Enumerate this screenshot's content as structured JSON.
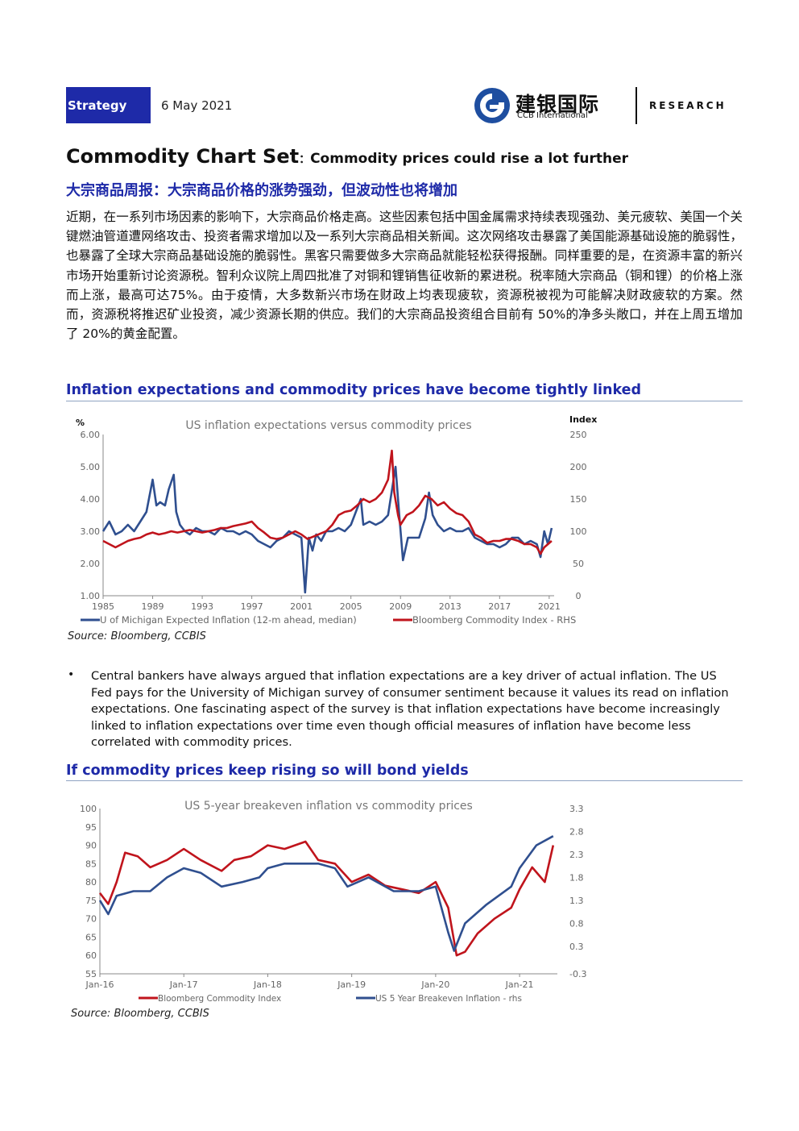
{
  "header": {
    "strategy_label": "Strategy",
    "date": "6 May 2021",
    "logo_cn": "建银国际",
    "logo_en": "CCB International",
    "research_label": "RESEARCH",
    "logo_color": "#1e4ea0"
  },
  "title": {
    "main": "Commodity Chart Set",
    "colon": "：",
    "sub": "Commodity prices could rise a lot further",
    "cn": "大宗商品周报：大宗商品价格的涨势强劲，但波动性也将增加"
  },
  "body_cn": "近期，在一系列市场因素的影响下，大宗商品价格走高。这些因素包括中国金属需求持续表现强劲、美元疲软、美国一个关键燃油管道遭网络攻击、投资者需求增加以及一系列大宗商品相关新闻。这次网络攻击暴露了美国能源基础设施的脆弱性，也暴露了全球大宗商品基础设施的脆弱性。黑客只需要做多大宗商品就能轻松获得报酬。同样重要的是，在资源丰富的新兴市场开始重新讨论资源税。智利众议院上周四批准了对铜和锂销售征收新的累进税。税率随大宗商品（铜和锂）的价格上涨而上涨，最高可达75%。由于疫情，大多数新兴市场在财政上均表现疲软，资源税被视为可能解决财政疲软的方案。然而，资源税将推迟矿业投资，减少资源长期的供应。我们的大宗商品投资组合目前有 50%的净多头敞口，并在上周五增加了 20%的黄金配置。",
  "section1": {
    "title": "Inflation expectations and commodity prices have become tightly linked"
  },
  "section2": {
    "title": "If commodity prices keep rising so will bond yields"
  },
  "source1": "Source: Bloomberg, CCBIS",
  "source2": "Source: Bloomberg, CCBIS",
  "bullet": {
    "symbol": "•",
    "text": "Central bankers have always argued that inflation expectations are a key driver of actual inflation. The US Fed pays for the University of Michigan survey of consumer sentiment because it values its read on inflation expectations. One fascinating aspect of the survey is that inflation expectations have become increasingly linked to inflation expectations over time even though official measures of inflation have become less correlated with commodity prices."
  },
  "chart_data": [
    {
      "type": "line",
      "title": "US inflation expectations versus commodity prices",
      "ylabel": "%",
      "y2label": "Index",
      "ylim": [
        1,
        6
      ],
      "y2lim": [
        0,
        250
      ],
      "yticks": [
        "6.00",
        "5.00",
        "4.00",
        "3.00",
        "2.00",
        "1.00"
      ],
      "y2ticks": [
        "250",
        "200",
        "150",
        "100",
        "50",
        "0"
      ],
      "xlim": [
        1985,
        2021.4
      ],
      "xticks": [
        "1985",
        "1989",
        "1993",
        "1997",
        "2001",
        "2005",
        "2009",
        "2013",
        "2017",
        "2021"
      ],
      "legend_position": "bottom",
      "series": [
        {
          "name": "U of Michigan Expected Inflation (12-m ahead, median)",
          "axis": "left",
          "color": "#2f4f8f",
          "x": [
            1985,
            1985.5,
            1986,
            1986.5,
            1987,
            1987.5,
            1988,
            1988.5,
            1989,
            1989.3,
            1989.6,
            1990,
            1990.3,
            1990.7,
            1990.9,
            1991.2,
            1991.6,
            1992,
            1992.5,
            1993,
            1993.5,
            1994,
            1994.5,
            1995,
            1995.5,
            1996,
            1996.5,
            1997,
            1997.5,
            1998,
            1998.5,
            1999,
            1999.5,
            2000,
            2000.5,
            2001,
            2001.3,
            2001.6,
            2001.9,
            2002.2,
            2002.6,
            2003,
            2003.5,
            2004,
            2004.5,
            2005,
            2005.4,
            2005.8,
            2006,
            2006.5,
            2007,
            2007.5,
            2008,
            2008.4,
            2008.6,
            2008.9,
            2009.2,
            2009.6,
            2010,
            2010.5,
            2011,
            2011.3,
            2011.6,
            2012,
            2012.5,
            2013,
            2013.5,
            2014,
            2014.5,
            2015,
            2015.5,
            2016,
            2016.5,
            2017,
            2017.5,
            2018,
            2018.5,
            2019,
            2019.5,
            2020,
            2020.3,
            2020.6,
            2020.9,
            2021.2
          ],
          "y": [
            3.0,
            3.3,
            2.9,
            3.0,
            3.2,
            3.0,
            3.3,
            3.6,
            4.6,
            3.8,
            3.9,
            3.8,
            4.3,
            4.75,
            3.6,
            3.2,
            3.0,
            2.9,
            3.1,
            3.0,
            3.0,
            2.9,
            3.1,
            3.0,
            3.0,
            2.9,
            3.0,
            2.9,
            2.7,
            2.6,
            2.5,
            2.7,
            2.8,
            3.0,
            2.9,
            2.8,
            1.1,
            2.8,
            2.4,
            2.9,
            2.7,
            3.0,
            3.0,
            3.1,
            3.0,
            3.2,
            3.6,
            4.0,
            3.2,
            3.3,
            3.2,
            3.3,
            3.5,
            4.5,
            5.0,
            3.5,
            2.1,
            2.8,
            2.8,
            2.8,
            3.4,
            4.2,
            3.5,
            3.2,
            3.0,
            3.1,
            3.0,
            3.0,
            3.1,
            2.8,
            2.7,
            2.6,
            2.6,
            2.5,
            2.6,
            2.8,
            2.8,
            2.6,
            2.7,
            2.6,
            2.2,
            3.0,
            2.6,
            3.1
          ]
        },
        {
          "name": "Bloomberg Commodity Index - RHS",
          "axis": "right",
          "color": "#c0141c",
          "x": [
            1985,
            1985.5,
            1986,
            1986.5,
            1987,
            1987.5,
            1988,
            1988.5,
            1989,
            1989.5,
            1990,
            1990.5,
            1991,
            1991.5,
            1992,
            1992.5,
            1993,
            1993.5,
            1994,
            1994.5,
            1995,
            1995.5,
            1996,
            1996.5,
            1997,
            1997.5,
            1998,
            1998.5,
            1999,
            1999.5,
            2000,
            2000.5,
            2001,
            2001.5,
            2002,
            2002.5,
            2003,
            2003.5,
            2004,
            2004.5,
            2005,
            2005.5,
            2006,
            2006.5,
            2007,
            2007.5,
            2008,
            2008.3,
            2008.5,
            2008.8,
            2009,
            2009.5,
            2010,
            2010.5,
            2011,
            2011.5,
            2012,
            2012.5,
            2013,
            2013.5,
            2014,
            2014.5,
            2015,
            2015.5,
            2016,
            2016.5,
            2017,
            2017.5,
            2018,
            2018.5,
            2019,
            2019.5,
            2020,
            2020.3,
            2020.6,
            2020.9,
            2021.2
          ],
          "y": [
            85,
            80,
            75,
            80,
            85,
            88,
            90,
            95,
            98,
            95,
            97,
            100,
            98,
            100,
            102,
            100,
            98,
            100,
            102,
            105,
            105,
            108,
            110,
            112,
            115,
            105,
            98,
            90,
            88,
            90,
            95,
            100,
            95,
            88,
            92,
            96,
            100,
            110,
            125,
            130,
            132,
            140,
            150,
            145,
            150,
            160,
            180,
            225,
            160,
            125,
            110,
            125,
            130,
            140,
            155,
            150,
            140,
            145,
            135,
            128,
            125,
            115,
            95,
            90,
            82,
            85,
            85,
            88,
            88,
            85,
            80,
            80,
            75,
            65,
            75,
            80,
            85
          ]
        }
      ]
    },
    {
      "type": "line",
      "title": "US 5-year breakeven inflation vs commodity prices",
      "ylim": [
        55,
        100
      ],
      "y2lim": [
        -0.3,
        3.3
      ],
      "yticks": [
        "100",
        "95",
        "90",
        "85",
        "80",
        "75",
        "70",
        "65",
        "60",
        "55"
      ],
      "y2ticks": [
        "3.3",
        "2.8",
        "2.3",
        "1.8",
        "1.3",
        "0.8",
        "0.3",
        "-0.3"
      ],
      "xticks": [
        "Jan-16",
        "Jan-17",
        "Jan-18",
        "Jan-19",
        "Jan-20",
        "Jan-21"
      ],
      "xlim": [
        2016,
        2021.45
      ],
      "legend_position": "bottom",
      "series": [
        {
          "name": "Bloomberg Commodity Index",
          "axis": "left",
          "color": "#c0141c",
          "x": [
            2016,
            2016.1,
            2016.2,
            2016.3,
            2016.45,
            2016.6,
            2016.8,
            2017,
            2017.2,
            2017.45,
            2017.6,
            2017.8,
            2018,
            2018.2,
            2018.45,
            2018.6,
            2018.8,
            2019,
            2019.2,
            2019.4,
            2019.6,
            2019.8,
            2020,
            2020.15,
            2020.25,
            2020.35,
            2020.5,
            2020.7,
            2020.9,
            2021,
            2021.15,
            2021.3,
            2021.4
          ],
          "y": [
            77,
            74,
            80,
            88,
            87,
            84,
            86,
            89,
            86,
            83,
            86,
            87,
            90,
            89,
            91,
            86,
            85,
            80,
            82,
            79,
            78,
            77,
            80,
            73,
            60,
            61,
            66,
            70,
            73,
            78,
            84,
            80,
            90
          ]
        },
        {
          "name": "US 5 Year Breakeven Inflation - rhs",
          "axis": "right",
          "color": "#2f4f8f",
          "x": [
            2016,
            2016.1,
            2016.2,
            2016.4,
            2016.6,
            2016.8,
            2017,
            2017.2,
            2017.45,
            2017.7,
            2017.9,
            2018,
            2018.2,
            2018.45,
            2018.6,
            2018.8,
            2018.95,
            2019.2,
            2019.5,
            2019.8,
            2020,
            2020.15,
            2020.22,
            2020.35,
            2020.6,
            2020.9,
            2021,
            2021.2,
            2021.4
          ],
          "y": [
            1.3,
            1.0,
            1.4,
            1.5,
            1.5,
            1.8,
            2.0,
            1.9,
            1.6,
            1.7,
            1.8,
            2.0,
            2.1,
            2.1,
            2.1,
            2.0,
            1.6,
            1.8,
            1.5,
            1.5,
            1.6,
            0.6,
            0.2,
            0.8,
            1.2,
            1.6,
            2.0,
            2.5,
            2.7
          ]
        }
      ]
    }
  ]
}
